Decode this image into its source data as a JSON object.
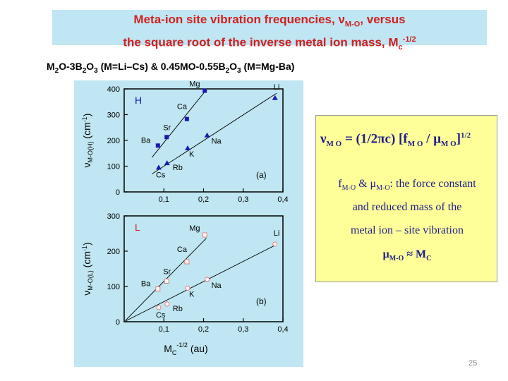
{
  "title": {
    "line1_prefix": "Meta-ion site vibration frequencies, ",
    "line1_nu": "ν",
    "line1_sub": "M-O",
    "line1_suffix": ", versus",
    "line2_prefix": "the square root of the inverse metal ion mass, M",
    "line2_sub": "c",
    "line2_sup": "-1/2"
  },
  "subtitle": {
    "parts": [
      "M",
      "2",
      "O-3B",
      "2",
      "O",
      "3",
      " (M=Li–Cs) & 0.45MO-0.55B",
      "2",
      "O",
      "3",
      " (M=Mg-Ba)"
    ]
  },
  "formula": {
    "main_nu": "ν",
    "main_sub": "M O",
    "main_eq": " = (1/2πc) [",
    "main_f": "f",
    "main_f_sub": "M O",
    "main_slash": " / μ",
    "main_mu_sub": "M O",
    "main_close": "]",
    "main_sup": "1/2",
    "line1_f": "f",
    "line1_f_sub": "M-O",
    "line1_mid": " & μ",
    "line1_mu_sub": "M-O",
    "line1_rest": ": the force constant",
    "line2": "and reduced mass of the",
    "line3": "metal ion – site vibration",
    "line4_mu": "μ",
    "line4_sub": "M-O",
    "line4_rest": " ≈ M",
    "line4_sub2": "C"
  },
  "page_number": "25",
  "colors": {
    "title_red": "#d11f1f",
    "panel_bg": "#bfe6f2",
    "formula_bg": "#ffff99",
    "formula_text": "#1c1c8c",
    "series_blue": "#1a1ab0",
    "series_pink": "#e87a7a"
  },
  "chart_data": [
    {
      "type": "scatter",
      "panel_label": "H",
      "corner_label": "(a)",
      "ylabel": "ν",
      "ylabel_sub": "M-O(H)",
      "ylabel_unit": "(cm",
      "ylabel_sup": "-1",
      "ylabel_close": ")",
      "xlim": [
        0,
        0.4
      ],
      "ylim": [
        0,
        400
      ],
      "x_ticks": [
        "0,1",
        "0,2",
        "0,3",
        "0,4"
      ],
      "y_ticks": [
        "0",
        "100",
        "200",
        "300",
        "400"
      ],
      "series": [
        {
          "marker": "square",
          "points": [
            {
              "label": "Ba",
              "x": 0.085,
              "y": 180
            },
            {
              "label": "Sr",
              "x": 0.107,
              "y": 213
            },
            {
              "label": "Ca",
              "x": 0.158,
              "y": 283
            },
            {
              "label": "Mg",
              "x": 0.203,
              "y": 393
            }
          ]
        },
        {
          "marker": "triangle",
          "points": [
            {
              "label": "Cs",
              "x": 0.087,
              "y": 95
            },
            {
              "label": "Rb",
              "x": 0.108,
              "y": 112
            },
            {
              "label": "K",
              "x": 0.16,
              "y": 170
            },
            {
              "label": "Na",
              "x": 0.209,
              "y": 220
            },
            {
              "label": "Li",
              "x": 0.38,
              "y": 365
            }
          ]
        }
      ]
    },
    {
      "type": "scatter",
      "panel_label": "L",
      "corner_label": "(b)",
      "ylabel": "ν",
      "ylabel_sub": "M-O(L)",
      "ylabel_unit": "(cm",
      "ylabel_sup": "-1",
      "ylabel_close": ")",
      "xlabel": "M",
      "xlabel_sub": "C",
      "xlabel_sup": "-1/2",
      "xlabel_unit": " (au)",
      "xlim": [
        0,
        0.4
      ],
      "ylim": [
        0,
        300
      ],
      "x_ticks": [
        "0,1",
        "0,2",
        "0,3",
        "0,4"
      ],
      "y_ticks": [
        "0",
        "100",
        "200",
        "300"
      ],
      "series": [
        {
          "marker": "square-open",
          "points": [
            {
              "label": "Ba",
              "x": 0.085,
              "y": 93
            },
            {
              "label": "Sr",
              "x": 0.107,
              "y": 115
            },
            {
              "label": "Ca",
              "x": 0.158,
              "y": 170
            },
            {
              "label": "Mg",
              "x": 0.203,
              "y": 246
            }
          ]
        },
        {
          "marker": "circle-open",
          "points": [
            {
              "label": "Cs",
              "x": 0.087,
              "y": 40
            },
            {
              "label": "Rb",
              "x": 0.108,
              "y": 50
            },
            {
              "label": "K",
              "x": 0.16,
              "y": 95
            },
            {
              "label": "Na",
              "x": 0.209,
              "y": 120
            },
            {
              "label": "Li",
              "x": 0.38,
              "y": 220
            }
          ]
        }
      ]
    }
  ]
}
